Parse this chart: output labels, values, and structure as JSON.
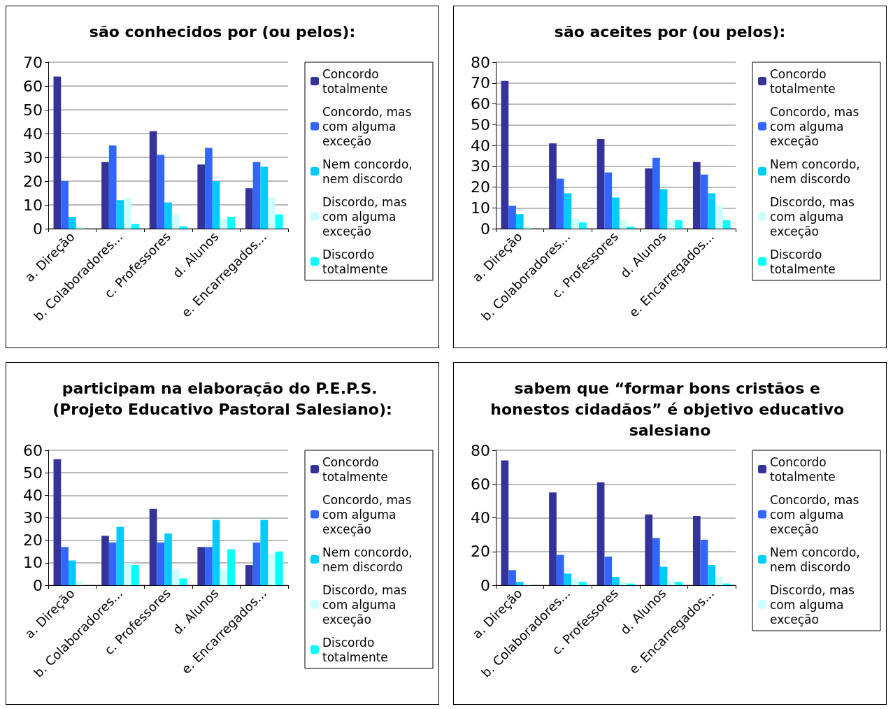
{
  "chart_data": [
    {
      "type": "bar",
      "title": "são conhecidos por (ou pelos):",
      "categories": [
        "a. Direção",
        "b. Colaboradores...",
        "c. Professores",
        "d. Alunos",
        "e. Encarregados..."
      ],
      "ylim": [
        0,
        70
      ],
      "yticks": [
        0,
        10,
        20,
        30,
        40,
        50,
        60,
        70
      ],
      "grid": "y",
      "legend": "right",
      "series": [
        {
          "name": "Concordo totalmente",
          "color": "#333399",
          "values": [
            64,
            28,
            41,
            27,
            17
          ]
        },
        {
          "name": "Concordo, mas com alguma exceção",
          "color": "#3366ff",
          "values": [
            20,
            35,
            31,
            34,
            28
          ]
        },
        {
          "name": "Nem concordo, nem discordo",
          "color": "#00ccff",
          "values": [
            5,
            12,
            11,
            20,
            26
          ]
        },
        {
          "name": "Discordo, mas com alguma exceção",
          "color": "#ccffff",
          "values": [
            1,
            13,
            6,
            4,
            13
          ]
        },
        {
          "name": "Discordo totalmente",
          "color": "#00ffff",
          "values": [
            0,
            2,
            1,
            5,
            6
          ]
        }
      ]
    },
    {
      "type": "bar",
      "title": "são aceites por (ou pelos):",
      "categories": [
        "a. Direção",
        "b. Colaboradores...",
        "c. Professores",
        "d. Alunos",
        "e. Encarregados..."
      ],
      "ylim": [
        0,
        80
      ],
      "yticks": [
        0,
        10,
        20,
        30,
        40,
        50,
        60,
        70,
        80
      ],
      "grid": "y",
      "legend": "right",
      "series": [
        {
          "name": "Concordo totalmente",
          "color": "#333399",
          "values": [
            71,
            41,
            43,
            29,
            32
          ]
        },
        {
          "name": "Concordo, mas com alguma exceção",
          "color": "#3366ff",
          "values": [
            11,
            24,
            27,
            34,
            26
          ]
        },
        {
          "name": "Nem concordo, nem discordo",
          "color": "#00ccff",
          "values": [
            7,
            17,
            15,
            19,
            17
          ]
        },
        {
          "name": "Discordo, mas com alguma exceção",
          "color": "#ccffff",
          "values": [
            1,
            5,
            4,
            4,
            11
          ]
        },
        {
          "name": "Discordo totalmente",
          "color": "#00ffff",
          "values": [
            0,
            3,
            1,
            4,
            4
          ]
        }
      ]
    },
    {
      "type": "bar",
      "title": "participam na elaboração do P.E.P.S. (Projeto Educativo Pastoral Salesiano):",
      "categories": [
        "a. Direção",
        "b. Colaboradores...",
        "c. Professores",
        "d. Alunos",
        "e. Encarregados..."
      ],
      "ylim": [
        0,
        60
      ],
      "yticks": [
        0,
        10,
        20,
        30,
        40,
        50,
        60
      ],
      "grid": "y",
      "legend": "right",
      "series": [
        {
          "name": "Concordo totalmente",
          "color": "#333399",
          "values": [
            56,
            22,
            34,
            17,
            9
          ]
        },
        {
          "name": "Concordo, mas com alguma exceção",
          "color": "#3366ff",
          "values": [
            17,
            19,
            19,
            17,
            19
          ]
        },
        {
          "name": "Nem concordo, nem discordo",
          "color": "#00ccff",
          "values": [
            11,
            26,
            23,
            29,
            29
          ]
        },
        {
          "name": "Discordo, mas com alguma exceção",
          "color": "#ccffff",
          "values": [
            2,
            10,
            7,
            7,
            14
          ]
        },
        {
          "name": "Discordo totalmente",
          "color": "#00ffff",
          "values": [
            0,
            9,
            3,
            16,
            15
          ]
        }
      ]
    },
    {
      "type": "bar",
      "title": "sabem que “formar bons cristãos e honestos cidadãos” é objetivo educativo salesiano",
      "categories": [
        "a. Direção",
        "b. Colaboradores...",
        "c. Professores",
        "d. Alunos",
        "e. Encarregados..."
      ],
      "ylim": [
        0,
        80
      ],
      "yticks": [
        0,
        20,
        40,
        60,
        80
      ],
      "grid": "y",
      "legend": "right",
      "series": [
        {
          "name": "Concordo totalmente",
          "color": "#333399",
          "values": [
            74,
            55,
            61,
            42,
            41
          ]
        },
        {
          "name": "Concordo, mas com alguma exceção",
          "color": "#3366ff",
          "values": [
            9,
            18,
            17,
            28,
            27
          ]
        },
        {
          "name": "Nem concordo, nem discordo",
          "color": "#00ccff",
          "values": [
            2,
            7,
            5,
            11,
            12
          ]
        },
        {
          "name": "Discordo, mas com alguma exceção",
          "color": "#ccffff",
          "values": [
            1,
            4,
            2,
            3,
            5
          ]
        },
        {
          "color": "#00ffff",
          "values": [
            0,
            2,
            1,
            2,
            1
          ]
        }
      ]
    }
  ]
}
